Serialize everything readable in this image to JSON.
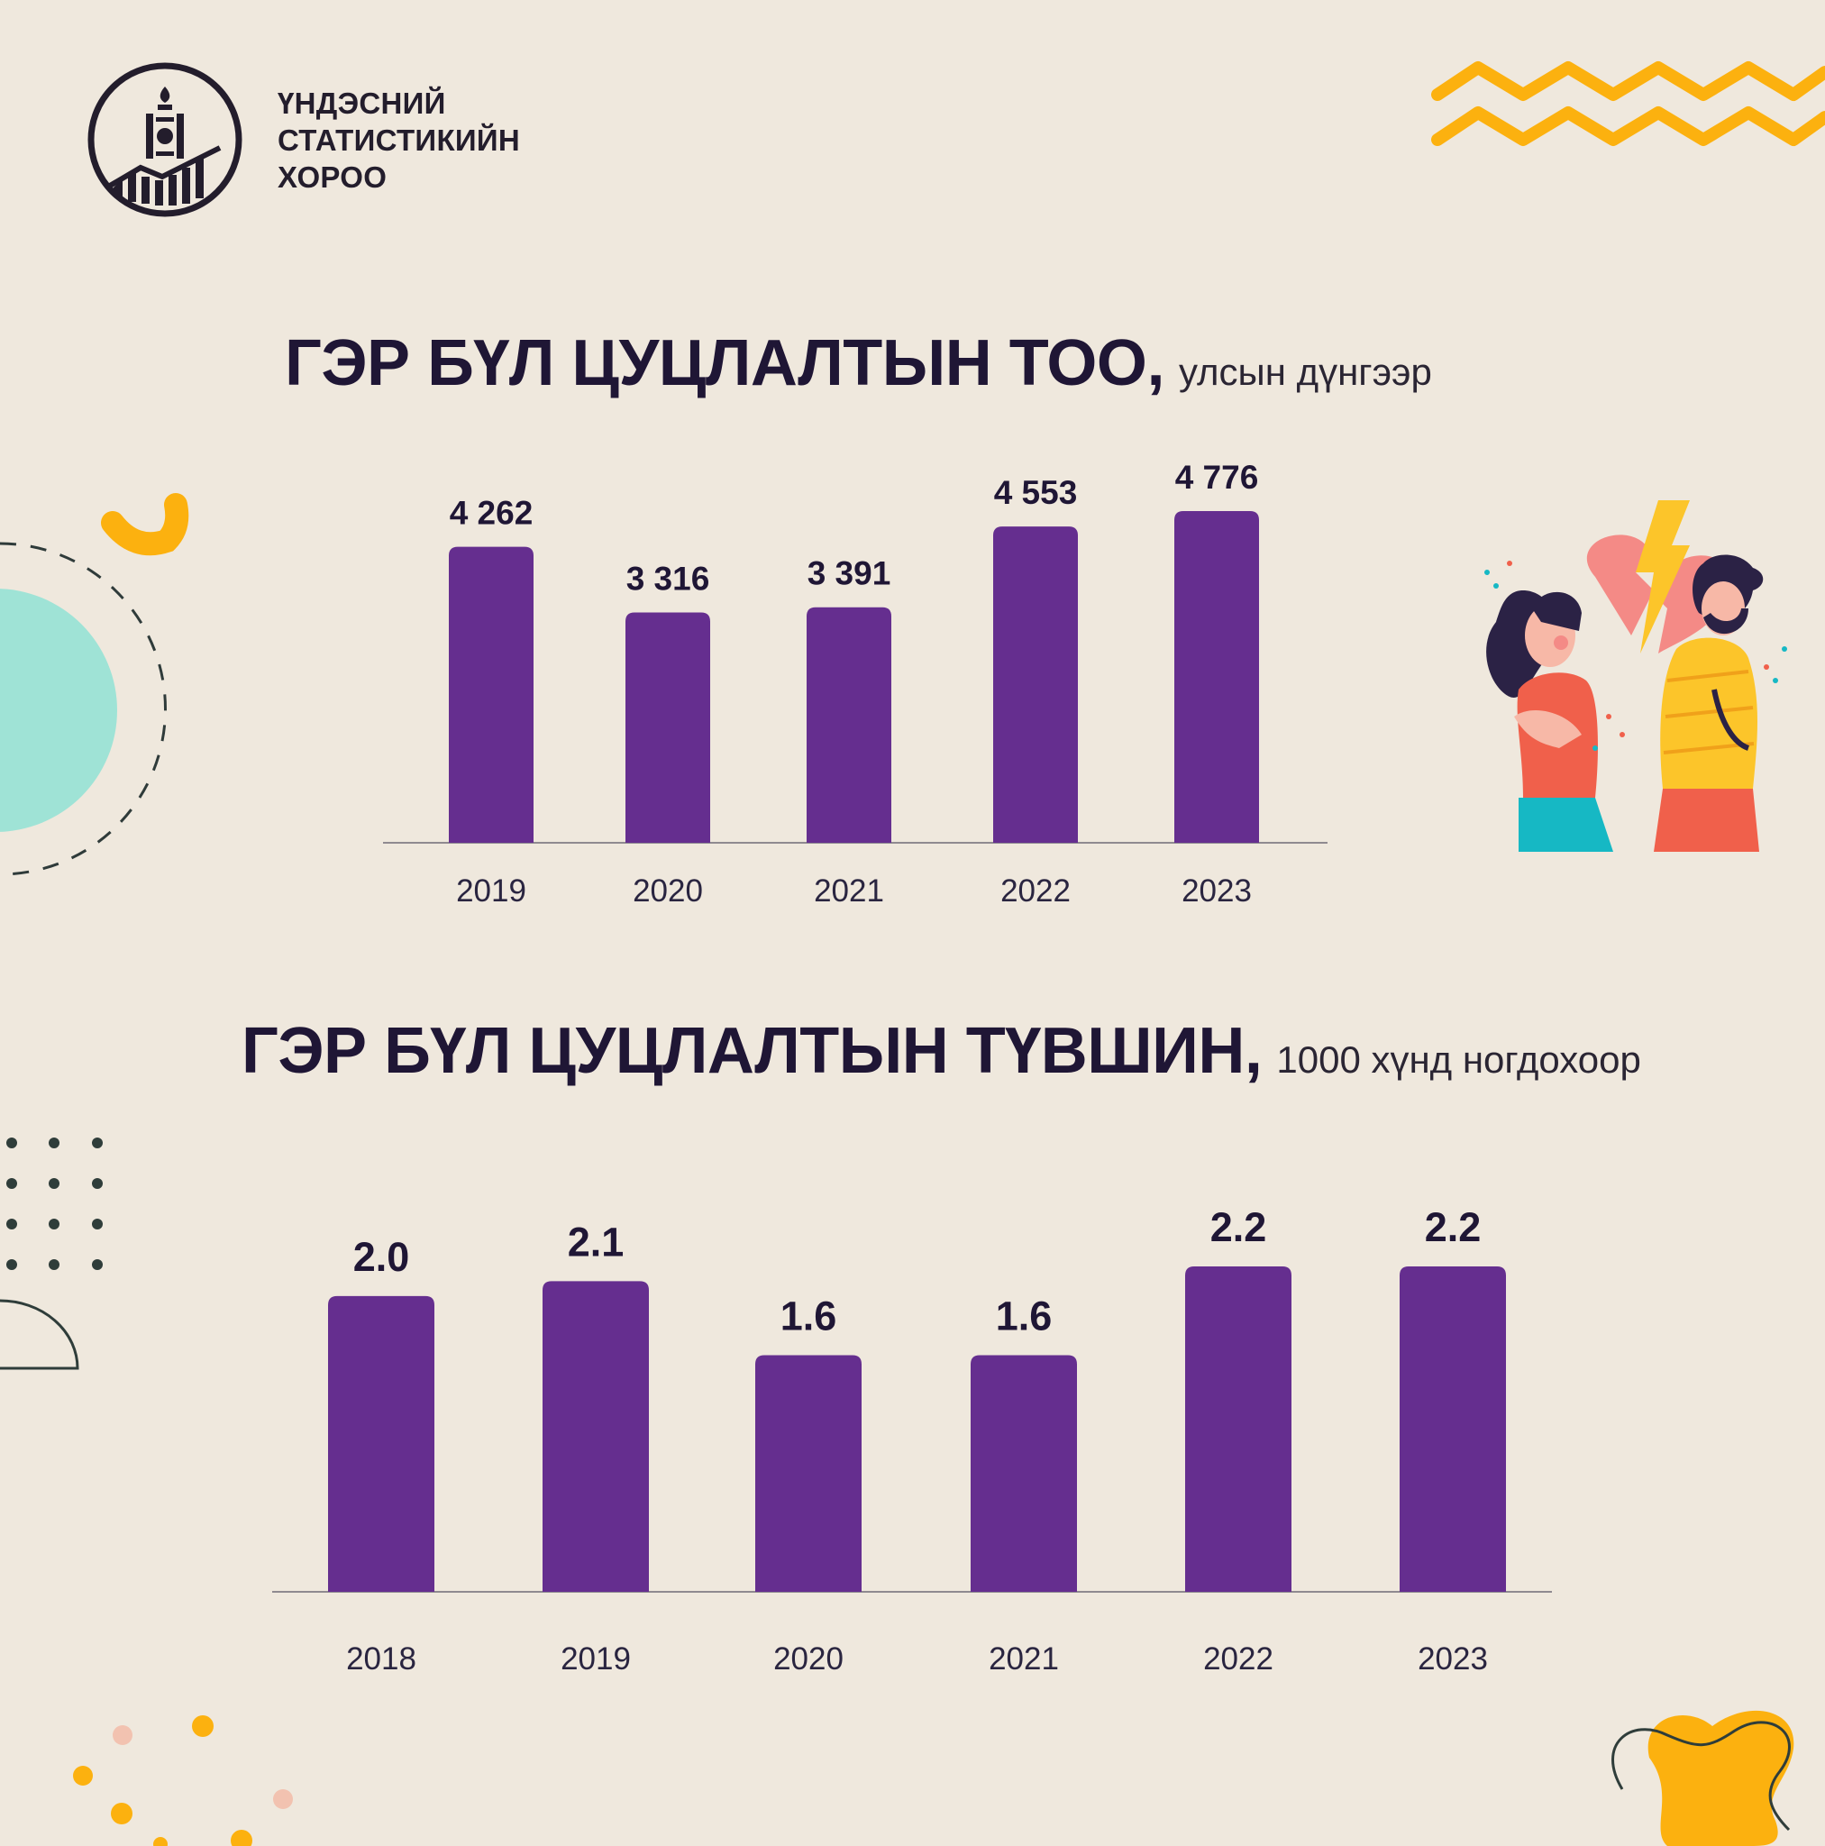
{
  "header": {
    "org_name_lines": [
      "ҮНДЭСНИЙ",
      "СТАТИСТИКИЙН",
      "ХОРОО"
    ],
    "logo_icon": "nso-emblem-icon"
  },
  "colors": {
    "bar": "#652e8f",
    "background": "#efe8dd",
    "accent_yellow": "#fcb10f",
    "mint": "#9fe3d6"
  },
  "charts": [
    {
      "title": "ГЭР БҮЛ ЦУЦЛАЛТЫН ТОО,",
      "subtitle": "улсын дүнгээр"
    },
    {
      "title": "ГЭР БҮЛ ЦУЦЛАЛТЫН ТҮВШИН,",
      "subtitle": "1000 хүнд ногдохоор"
    }
  ],
  "illustration_icon": "broken-heart-couple-icon",
  "chart_data": [
    {
      "type": "bar",
      "title": "ГЭР БҮЛ ЦУЦЛАЛТЫН ТОО,",
      "subtitle": "улсын дүнгээр",
      "categories": [
        "2019",
        "2020",
        "2021",
        "2022",
        "2023"
      ],
      "values": [
        4262,
        3316,
        3391,
        4553,
        4776
      ],
      "labels": [
        "4 262",
        "3 316",
        "3 391",
        "4 553",
        "4 776"
      ],
      "ylim": [
        0,
        4776
      ],
      "grid": false,
      "legend": "none"
    },
    {
      "type": "bar",
      "title": "ГЭР БҮЛ ЦУЦЛАЛТЫН ТҮВШИН,",
      "subtitle": "1000 хүнд ногдохоор",
      "categories": [
        "2018",
        "2019",
        "2020",
        "2021",
        "2022",
        "2023"
      ],
      "values": [
        2.0,
        2.1,
        1.6,
        1.6,
        2.2,
        2.2
      ],
      "labels": [
        "2.0",
        "2.1",
        "1.6",
        "1.6",
        "2.2",
        "2.2"
      ],
      "ylim": [
        0,
        2.2
      ],
      "grid": false,
      "legend": "none"
    }
  ]
}
